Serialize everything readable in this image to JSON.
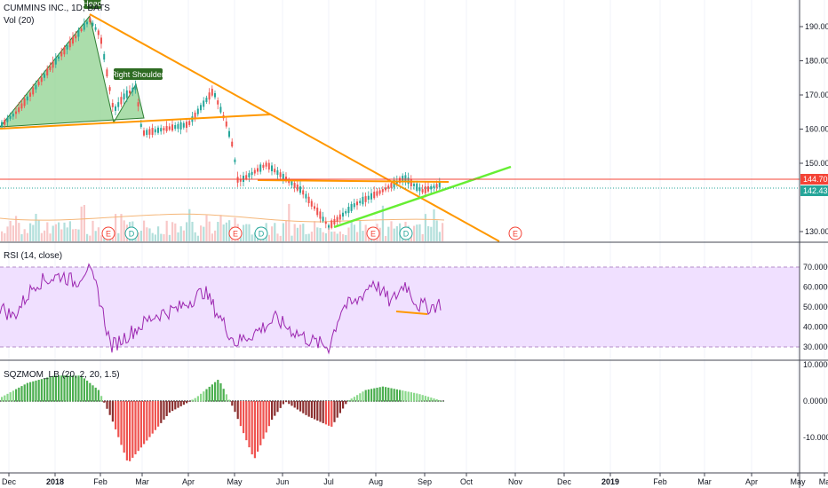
{
  "symbol_title": "CUMMINS INC., 1D, BATS",
  "vol_label": "Vol (20)",
  "rsi_label": "RSI (14, close)",
  "sqz_label": "SQZMOM_LB (20, 2, 20, 1.5)",
  "annotations": {
    "head": "Head",
    "right_shoulder": "Right Shoulder"
  },
  "earnings_markers": [
    "E",
    "D",
    "E",
    "D",
    "E",
    "D",
    "E"
  ],
  "price_badges": {
    "last": "144.70",
    "current": "142.43"
  },
  "colors": {
    "pattern_fill": "#8fd18f",
    "trendline_orange": "#ff9800",
    "trendline_green": "#66ee33",
    "rsi_line": "#9c27b0",
    "rsi_band": "#f0e0ff",
    "mom_pos": "#4caf50",
    "mom_neg": "#ef5350",
    "badge_red": "#f44336",
    "badge_teal": "#26a69a"
  },
  "chart_data": [
    {
      "type": "line",
      "title": "CUMMINS INC., 1D, BATS",
      "x_ticks": [
        "Dec",
        "2018",
        "Feb",
        "Mar",
        "Apr",
        "May",
        "Jun",
        "Jul",
        "Aug",
        "Sep",
        "Oct",
        "Nov",
        "Dec",
        "2019",
        "Feb",
        "Mar",
        "Apr",
        "May",
        "Ma"
      ],
      "y_ticks": [
        "190.00",
        "180.00",
        "170.00",
        "160.00",
        "150.00",
        "130.00"
      ],
      "ylim": [
        128,
        195
      ],
      "close_by_month": {
        "x": [
          "Dec",
          "2018",
          "Feb",
          "Mar",
          "Apr",
          "May",
          "Jun",
          "Jul",
          "Aug",
          "Sep"
        ],
        "values": [
          165,
          180,
          176,
          161,
          161,
          148,
          147,
          134,
          144,
          145
        ]
      },
      "last_price": 144.7,
      "current_price": 142.43
    },
    {
      "type": "line",
      "title": "RSI (14, close)",
      "y_ticks": [
        "70.0000",
        "60.0000",
        "50.0000",
        "40.0000",
        "30.0000"
      ],
      "ylim": [
        25,
        75
      ],
      "band": [
        30,
        70
      ]
    },
    {
      "type": "bar",
      "title": "SQZMOM_LB (20, 2, 20, 1.5)",
      "y_ticks": [
        "10.0000",
        "0.0000",
        "-10.0000"
      ],
      "ylim": [
        -17,
        10
      ]
    }
  ]
}
